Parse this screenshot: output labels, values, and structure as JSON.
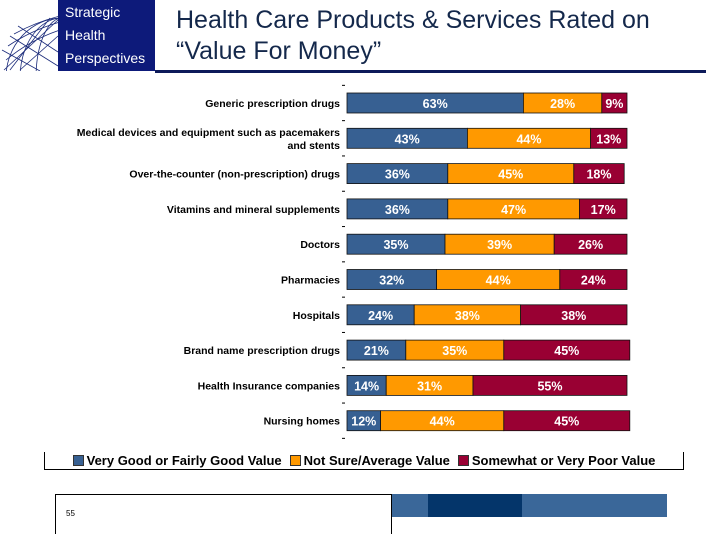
{
  "header": {
    "logo_lines": [
      "Strategic",
      "Health",
      "Perspectives"
    ],
    "title_line1": "Health Care Products & Services Rated on",
    "title_line2": "“Value For Money”"
  },
  "footer": {
    "page_number": "55"
  },
  "colors": {
    "good": "#376092",
    "average": "#ff9900",
    "poor": "#990033",
    "brand": "#0d1a7a"
  },
  "chart_data": {
    "type": "bar",
    "orientation": "horizontal-stacked-100",
    "title": "Health Care Products & Services Rated on “Value For Money”",
    "xlabel": "",
    "ylabel": "",
    "xlim": [
      0,
      100
    ],
    "legend_position": "bottom",
    "categories": [
      "Generic prescription drugs",
      "Medical devices and equipment such as pacemakers and stents",
      "Over-the-counter (non-prescription) drugs",
      "Vitamins and mineral supplements",
      "Doctors",
      "Pharmacies",
      "Hospitals",
      "Brand name prescription drugs",
      "Health Insurance companies",
      "Nursing homes"
    ],
    "category_lines": [
      [
        "Generic prescription drugs"
      ],
      [
        "Medical devices and equipment such as pacemakers",
        "and stents"
      ],
      [
        "Over-the-counter (non-prescription) drugs"
      ],
      [
        "Vitamins and mineral supplements"
      ],
      [
        "Doctors"
      ],
      [
        "Pharmacies"
      ],
      [
        "Hospitals"
      ],
      [
        "Brand name prescription drugs"
      ],
      [
        "Health Insurance companies"
      ],
      [
        "Nursing homes"
      ]
    ],
    "series": [
      {
        "name": "Very Good or Fairly Good Value",
        "color": "#376092",
        "values": [
          63,
          43,
          36,
          36,
          35,
          32,
          24,
          21,
          14,
          12
        ]
      },
      {
        "name": "Not Sure/Average Value",
        "color": "#ff9900",
        "values": [
          28,
          44,
          45,
          47,
          39,
          44,
          38,
          35,
          31,
          44
        ]
      },
      {
        "name": "Somewhat or Very Poor Value",
        "color": "#990033",
        "values": [
          9,
          13,
          18,
          17,
          26,
          24,
          38,
          45,
          55,
          45
        ]
      }
    ]
  }
}
